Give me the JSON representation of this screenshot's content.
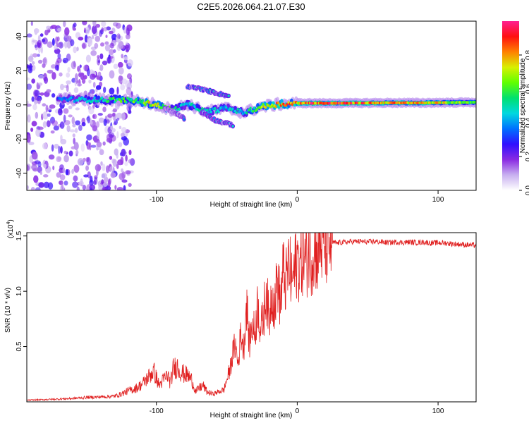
{
  "chart_data": [
    {
      "type": "heatmap",
      "title": "C2E5.2026.064.21.07.E30",
      "xlabel": "Height of straight line (km)",
      "ylabel": "Frequency (Hz)",
      "xlim": [
        -192,
        127
      ],
      "ylim": [
        -50,
        49
      ],
      "xticks": [
        -100,
        0,
        100
      ],
      "xtick_labels": [
        "-100",
        "0",
        "100"
      ],
      "yticks": [
        -40,
        -20,
        0,
        20,
        40
      ],
      "ytick_labels": [
        "-40",
        "-20",
        "0",
        "20",
        "40"
      ],
      "colorbar": {
        "label": "Normalized spectral amplitude",
        "range": [
          0,
          1
        ],
        "ticks": [
          0,
          0.2,
          0.4,
          0.6,
          0.8
        ],
        "tick_labels": [
          "0.0",
          "0.2",
          "0.4",
          "0.6",
          "0.8"
        ],
        "colors": [
          "#ffffff",
          "#c8b0f0",
          "#8a2be2",
          "#3010ff",
          "#0070ff",
          "#00d8e0",
          "#00e070",
          "#60ff00",
          "#d8f000",
          "#ff8000",
          "#ff1010",
          "#ff2090"
        ]
      },
      "ridge": [
        {
          "x": -170,
          "f": 3.5,
          "a": 0.35
        },
        {
          "x": -150,
          "f": 3.0,
          "a": 0.45
        },
        {
          "x": -130,
          "f": 3.0,
          "a": 0.55
        },
        {
          "x": -115,
          "f": 2.5,
          "a": 0.6
        },
        {
          "x": -100,
          "f": 0.0,
          "a": 0.75
        },
        {
          "x": -88,
          "f": -3.0,
          "a": 0.55
        },
        {
          "x": -78,
          "f": 0.5,
          "a": 0.45
        },
        {
          "x": -65,
          "f": -4.0,
          "a": 0.5
        },
        {
          "x": -50,
          "f": -2.0,
          "a": 0.45
        },
        {
          "x": -38,
          "f": -4.5,
          "a": 0.45
        },
        {
          "x": -25,
          "f": -1.0,
          "a": 0.7
        },
        {
          "x": -12,
          "f": 0.5,
          "a": 0.85
        },
        {
          "x": 0,
          "f": 1.0,
          "a": 0.8
        },
        {
          "x": 10,
          "f": 1.0,
          "a": 0.9
        },
        {
          "x": 30,
          "f": 1.0,
          "a": 0.88
        },
        {
          "x": 60,
          "f": 1.2,
          "a": 0.82
        },
        {
          "x": 90,
          "f": 1.2,
          "a": 0.78
        },
        {
          "x": 127,
          "f": 1.5,
          "a": 0.6
        }
      ],
      "side_branches": [
        {
          "x": [
            -78,
            -62,
            -48
          ],
          "f": [
            11,
            8,
            5
          ],
          "a": 0.45
        },
        {
          "x": [
            -68,
            -58,
            -45
          ],
          "f": [
            -4,
            -9,
            -12
          ],
          "a": 0.4
        },
        {
          "x": [
            -94,
            -86,
            -80
          ],
          "f": [
            -2,
            -5,
            -8
          ],
          "a": 0.35
        }
      ]
    },
    {
      "type": "line",
      "xlabel": "Height of straight line (km)",
      "ylabel": "SNR (10 * v/v)",
      "y_scale_label": "(x10",
      "y_scale_exponent": "4",
      "xlim": [
        -192,
        127
      ],
      "ylim": [
        0,
        15300
      ],
      "xticks": [
        -100,
        0,
        100
      ],
      "xtick_labels": [
        "-100",
        "0",
        "100"
      ],
      "yticks": [
        5000,
        10000,
        15000
      ],
      "ytick_labels": [
        "0.5",
        "1.0",
        "1.5"
      ],
      "series": [
        {
          "name": "SNR",
          "color": "#e02020",
          "x": [
            -192,
            -180,
            -170,
            -160,
            -150,
            -140,
            -130,
            -125,
            -120,
            -115,
            -110,
            -106,
            -102,
            -98,
            -95,
            -92,
            -90,
            -88,
            -85,
            -82,
            -80,
            -78,
            -75,
            -72,
            -70,
            -67,
            -64,
            -60,
            -56,
            -52,
            -50,
            -48,
            -46,
            -44,
            -42,
            -40,
            -38,
            -36,
            -34,
            -32,
            -30,
            -28,
            -26,
            -24,
            -22,
            -20,
            -18,
            -16,
            -14,
            -12,
            -10,
            -8,
            -6,
            -4,
            -2,
            0,
            2,
            4,
            6,
            8,
            10,
            12,
            14,
            16,
            18,
            20,
            22,
            24,
            26,
            28,
            30,
            35,
            40,
            45,
            50,
            55,
            60,
            65,
            70,
            75,
            80,
            85,
            90,
            95,
            100,
            105,
            110,
            115,
            120,
            127
          ],
          "y": [
            150,
            200,
            250,
            300,
            400,
            450,
            500,
            700,
            1000,
            1200,
            1600,
            2200,
            2800,
            1500,
            2000,
            2400,
            1700,
            3000,
            3200,
            2600,
            2500,
            2400,
            2000,
            900,
            1200,
            1500,
            900,
            700,
            900,
            1100,
            2000,
            2800,
            4200,
            5200,
            3400,
            6300,
            4800,
            9000,
            5200,
            7000,
            6200,
            9000,
            6500,
            7500,
            10400,
            7100,
            10200,
            8600,
            11300,
            8800,
            11800,
            10700,
            12500,
            10800,
            11700,
            13000,
            12200,
            13400,
            12600,
            13700,
            13300,
            13800,
            13600,
            14200,
            14100,
            14300,
            14300,
            14350,
            14400,
            14350,
            14400,
            14450,
            14500,
            14500,
            14450,
            14500,
            14450,
            14400,
            14450,
            14400,
            14450,
            14400,
            14450,
            14350,
            14400,
            14350,
            14300,
            14250,
            14200,
            14150
          ],
          "noise": 0.18
        }
      ]
    }
  ]
}
